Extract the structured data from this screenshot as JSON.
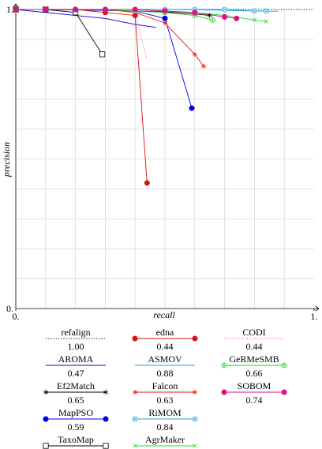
{
  "chart_data": {
    "type": "line",
    "xlabel": "recall",
    "ylabel": "precision",
    "xlim": [
      0,
      1
    ],
    "ylim": [
      0,
      1
    ],
    "x_ticks": [
      0,
      1
    ],
    "x_tick_labels": [
      "0.",
      "1."
    ],
    "y_ticks": [
      0,
      1
    ],
    "y_tick_labels": [
      "0.",
      "1."
    ],
    "grid": true,
    "legend_position": "bottom",
    "series": [
      {
        "name": "refalign",
        "value": "1.00",
        "color": "#000000",
        "marker": "none",
        "dash": "dotted",
        "points": [
          [
            0,
            1
          ],
          [
            0.1,
            1
          ],
          [
            0.2,
            1
          ],
          [
            0.3,
            1
          ],
          [
            0.4,
            1
          ],
          [
            0.5,
            1
          ],
          [
            0.6,
            1
          ],
          [
            0.7,
            1
          ],
          [
            0.8,
            1
          ],
          [
            0.9,
            1
          ],
          [
            1,
            1
          ]
        ]
      },
      {
        "name": "AROMA",
        "value": "0.47",
        "color": "#0000cc",
        "marker": "none",
        "dash": "solid",
        "points": [
          [
            0,
            1
          ],
          [
            0.1,
            0.99
          ],
          [
            0.2,
            0.98
          ],
          [
            0.3,
            0.97
          ],
          [
            0.4,
            0.95
          ],
          [
            0.47,
            0.94
          ]
        ]
      },
      {
        "name": "Ef2Match",
        "value": "0.65",
        "color": "#000000",
        "marker": "star",
        "dash": "solid",
        "points": [
          [
            0,
            1
          ],
          [
            0.1,
            1
          ],
          [
            0.2,
            0.999
          ],
          [
            0.3,
            0.997
          ],
          [
            0.4,
            0.995
          ],
          [
            0.5,
            0.992
          ],
          [
            0.6,
            0.985
          ],
          [
            0.65,
            0.98
          ]
        ]
      },
      {
        "name": "MapPSO",
        "value": "0.59",
        "color": "#0000ee",
        "marker": "circle",
        "dash": "solid",
        "points": [
          [
            0,
            1
          ],
          [
            0.1,
            1
          ],
          [
            0.2,
            0.999
          ],
          [
            0.3,
            0.997
          ],
          [
            0.4,
            0.995
          ],
          [
            0.5,
            0.97
          ],
          [
            0.59,
            0.67
          ]
        ]
      },
      {
        "name": "TaxoMap",
        "value": "0.29",
        "color": "#000000",
        "marker": "square-open",
        "dash": "solid",
        "points": [
          [
            0,
            1
          ],
          [
            0.1,
            1
          ],
          [
            0.2,
            0.99
          ],
          [
            0.29,
            0.85
          ]
        ]
      },
      {
        "name": "edna",
        "value": "0.44",
        "color": "#dd1111",
        "marker": "circle",
        "dash": "solid",
        "points": [
          [
            0,
            1
          ],
          [
            0.1,
            1
          ],
          [
            0.2,
            1
          ],
          [
            0.3,
            0.99
          ],
          [
            0.4,
            0.98
          ],
          [
            0.44,
            0.42
          ]
        ]
      },
      {
        "name": "ASMOV",
        "value": "0.88",
        "color": "#00aadd",
        "marker": "none",
        "dash": "solid",
        "points": [
          [
            0,
            1
          ],
          [
            0.1,
            1
          ],
          [
            0.2,
            1
          ],
          [
            0.3,
            1
          ],
          [
            0.4,
            1
          ],
          [
            0.5,
            1
          ],
          [
            0.6,
            0.999
          ],
          [
            0.7,
            0.997
          ],
          [
            0.8,
            0.995
          ],
          [
            0.88,
            0.994
          ]
        ]
      },
      {
        "name": "Falcon",
        "value": "0.63",
        "color": "#ee1111",
        "marker": "star",
        "dash": "solid",
        "points": [
          [
            0,
            1
          ],
          [
            0.1,
            1
          ],
          [
            0.2,
            1
          ],
          [
            0.3,
            1
          ],
          [
            0.4,
            0.99
          ],
          [
            0.5,
            0.955
          ],
          [
            0.6,
            0.85
          ],
          [
            0.63,
            0.81
          ]
        ]
      },
      {
        "name": "RiMOM",
        "value": "0.84",
        "color": "#22aadd",
        "marker": "otimes",
        "dash": "solid",
        "points": [
          [
            0,
            1
          ],
          [
            0.1,
            1
          ],
          [
            0.2,
            1
          ],
          [
            0.3,
            1
          ],
          [
            0.4,
            1
          ],
          [
            0.5,
            1
          ],
          [
            0.6,
            1
          ],
          [
            0.7,
            1
          ],
          [
            0.8,
            0.995
          ],
          [
            0.84,
            0.995
          ]
        ]
      },
      {
        "name": "AgrMaker",
        "value": "0.84",
        "color": "#22dd22",
        "marker": "x",
        "dash": "solid",
        "points": [
          [
            0,
            1
          ],
          [
            0.1,
            1
          ],
          [
            0.2,
            1
          ],
          [
            0.3,
            1
          ],
          [
            0.4,
            1
          ],
          [
            0.5,
            0.995
          ],
          [
            0.6,
            0.99
          ],
          [
            0.7,
            0.98
          ],
          [
            0.8,
            0.965
          ],
          [
            0.84,
            0.96
          ]
        ]
      },
      {
        "name": "CODI",
        "value": "0.44",
        "color": "#ee44aa",
        "marker": "none",
        "dash": "dotted",
        "points": [
          [
            0,
            1
          ],
          [
            0.1,
            1
          ],
          [
            0.2,
            1
          ],
          [
            0.3,
            1
          ],
          [
            0.4,
            0.99
          ],
          [
            0.44,
            0.83
          ]
        ]
      },
      {
        "name": "GeRMeSMB",
        "value": "0.66",
        "color": "#22cc22",
        "marker": "oplus",
        "dash": "solid",
        "points": [
          [
            0,
            1
          ],
          [
            0.1,
            1
          ],
          [
            0.2,
            1
          ],
          [
            0.3,
            0.999
          ],
          [
            0.4,
            0.995
          ],
          [
            0.5,
            0.99
          ],
          [
            0.6,
            0.98
          ],
          [
            0.66,
            0.965
          ]
        ]
      },
      {
        "name": "SOBOM",
        "value": "0.74",
        "color": "#dd1188",
        "marker": "circle",
        "dash": "solid",
        "points": [
          [
            0,
            1
          ],
          [
            0.1,
            1
          ],
          [
            0.2,
            1
          ],
          [
            0.3,
            1
          ],
          [
            0.4,
            1
          ],
          [
            0.5,
            0.995
          ],
          [
            0.6,
            0.99
          ],
          [
            0.7,
            0.975
          ],
          [
            0.74,
            0.97
          ]
        ]
      }
    ]
  }
}
